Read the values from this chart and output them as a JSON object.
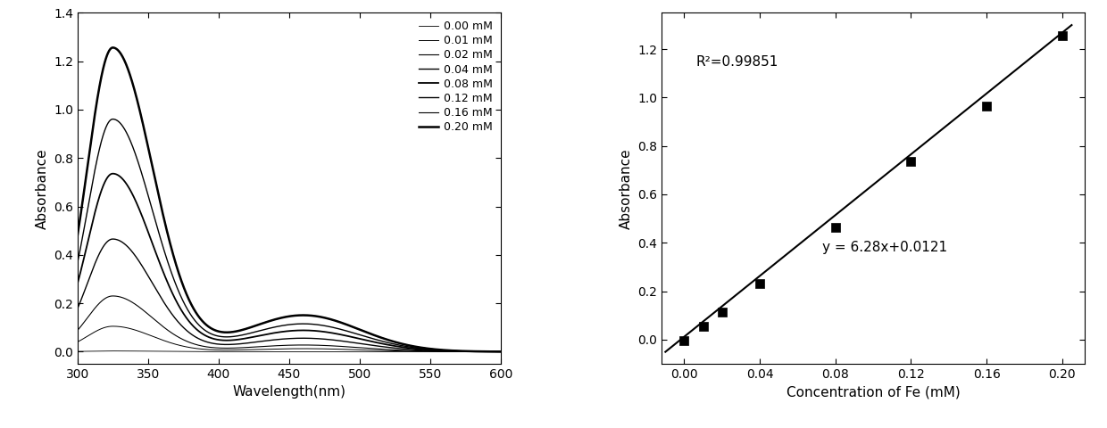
{
  "left_panel": {
    "xlabel": "Wavelength(nm)",
    "ylabel": "Absorbance",
    "xlim": [
      300,
      600
    ],
    "ylim": [
      -0.05,
      1.4
    ],
    "yticks": [
      0.0,
      0.2,
      0.4,
      0.6,
      0.8,
      1.0,
      1.2,
      1.4
    ],
    "xticks": [
      300,
      350,
      400,
      450,
      500,
      550,
      600
    ],
    "labels": [
      "0.00 mM",
      "0.01 mM",
      "0.02 mM",
      "0.04 mM",
      "0.08 mM",
      "0.12 mM",
      "0.16 mM",
      "0.20 mM"
    ],
    "peak_wavelength": 325,
    "peak_absorbances": [
      0.003,
      0.105,
      0.23,
      0.465,
      0.735,
      0.96,
      1.255,
      1.255
    ],
    "shoulder_wavelength": 460,
    "shoulder_scale": [
      0.0,
      0.12,
      0.12,
      0.12,
      0.12,
      0.12,
      0.12,
      0.12
    ],
    "line_colors": [
      "#000000",
      "#000000",
      "#000000",
      "#000000",
      "#000000",
      "#000000",
      "#000000",
      "#000000"
    ],
    "line_widths": [
      0.6,
      0.7,
      0.8,
      1.0,
      1.3,
      1.0,
      0.8,
      1.8
    ]
  },
  "right_panel": {
    "xlabel": "Concentration of Fe (mM)",
    "ylabel": "Absorbance",
    "xlim": [
      -0.012,
      0.212
    ],
    "ylim": [
      -0.1,
      1.35
    ],
    "xticks": [
      0.0,
      0.04,
      0.08,
      0.12,
      0.16,
      0.2
    ],
    "yticks": [
      0.0,
      0.2,
      0.4,
      0.6,
      0.8,
      1.0,
      1.2
    ],
    "x_data": [
      0.0,
      0.01,
      0.02,
      0.04,
      0.08,
      0.12,
      0.16,
      0.2
    ],
    "y_data": [
      -0.005,
      0.055,
      0.115,
      0.23,
      0.465,
      0.735,
      0.965,
      1.255
    ],
    "slope": 6.28,
    "intercept": 0.0121,
    "equation_text": "y = 6.28x+0.0121",
    "r2_text": "R²=0.99851",
    "marker": "s",
    "marker_color": "#000000",
    "marker_size": 7,
    "line_color": "#000000"
  }
}
